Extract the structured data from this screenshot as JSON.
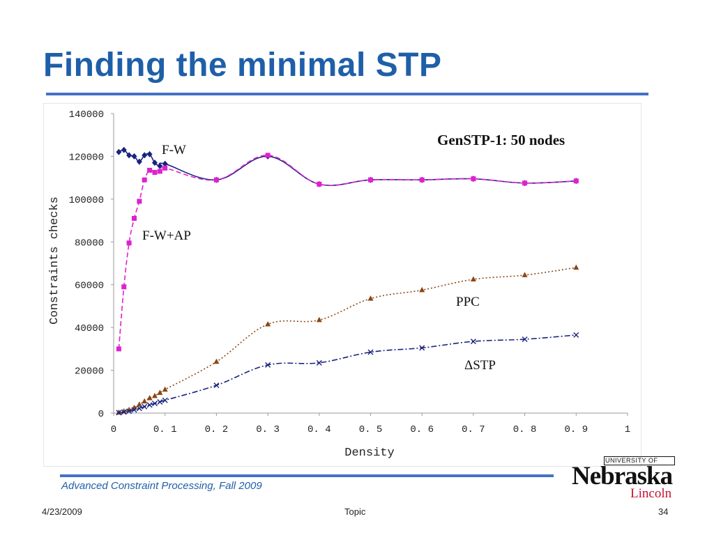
{
  "slide": {
    "title": "Finding the minimal STP",
    "course": "Advanced Constraint Processing, Fall 2009",
    "date": "4/23/2009",
    "topic": "Topic",
    "page_number": "34",
    "logo": {
      "university_of": "UNIVERSITY OF",
      "name": "Nebraska",
      "campus": "Lincoln"
    },
    "colors": {
      "title": "#1f5fa8",
      "rule": "#4472c4",
      "logo_red": "#c8102e"
    }
  },
  "chart_data": {
    "type": "line",
    "title": "GenSTP-1: 50 nodes",
    "xlabel": "Density",
    "ylabel": "Constraints checks",
    "xlim": [
      0,
      1
    ],
    "ylim": [
      0,
      140000
    ],
    "x_ticks": [
      "0",
      "0.1",
      "0.2",
      "0.3",
      "0.4",
      "0.5",
      "0.6",
      "0.7",
      "0.8",
      "0.9",
      "1"
    ],
    "y_ticks": [
      "0",
      "20000",
      "40000",
      "60000",
      "80000",
      "100000",
      "120000",
      "140000"
    ],
    "grid": false,
    "legend": "inline labels",
    "series": [
      {
        "name": "F-W",
        "color": "#1a237e",
        "marker": "diamond",
        "line": "solid",
        "x": [
          0.01,
          0.02,
          0.03,
          0.04,
          0.05,
          0.06,
          0.07,
          0.08,
          0.09,
          0.1,
          0.2,
          0.3,
          0.4,
          0.5,
          0.6,
          0.7,
          0.8,
          0.9
        ],
        "y": [
          122000,
          123000,
          120500,
          120000,
          117500,
          120500,
          121000,
          117000,
          115500,
          116500,
          109000,
          120000,
          107000,
          109000,
          109000,
          109500,
          107500,
          108500
        ]
      },
      {
        "name": "F-W+AP",
        "color": "#e020d0",
        "marker": "square",
        "line": "dashed",
        "x": [
          0.01,
          0.02,
          0.03,
          0.04,
          0.05,
          0.06,
          0.07,
          0.08,
          0.09,
          0.1,
          0.2,
          0.3,
          0.4,
          0.5,
          0.6,
          0.7,
          0.8,
          0.9
        ],
        "y": [
          30000,
          59000,
          79500,
          91000,
          99000,
          109000,
          113500,
          112500,
          113000,
          114500,
          109000,
          120500,
          107000,
          109000,
          109000,
          109500,
          107500,
          108500
        ]
      },
      {
        "name": "PPC",
        "color": "#8b4513",
        "marker": "triangle",
        "line": "dotted",
        "x": [
          0.01,
          0.02,
          0.03,
          0.04,
          0.05,
          0.06,
          0.07,
          0.08,
          0.09,
          0.1,
          0.2,
          0.3,
          0.4,
          0.5,
          0.6,
          0.7,
          0.8,
          0.9
        ],
        "y": [
          300,
          800,
          1500,
          2500,
          4000,
          5500,
          7000,
          8000,
          9500,
          11000,
          24000,
          41500,
          43500,
          53500,
          57500,
          62500,
          64500,
          68000
        ]
      },
      {
        "name": "ΔSTP",
        "color": "#1a237e",
        "marker": "x",
        "line": "dashdot",
        "x": [
          0.01,
          0.02,
          0.03,
          0.04,
          0.05,
          0.06,
          0.07,
          0.08,
          0.09,
          0.1,
          0.2,
          0.3,
          0.4,
          0.5,
          0.6,
          0.7,
          0.8,
          0.9
        ],
        "y": [
          200,
          500,
          900,
          1500,
          2200,
          3000,
          3800,
          4500,
          5200,
          6000,
          13000,
          22500,
          23500,
          28500,
          30500,
          33500,
          34500,
          36500
        ]
      }
    ]
  }
}
